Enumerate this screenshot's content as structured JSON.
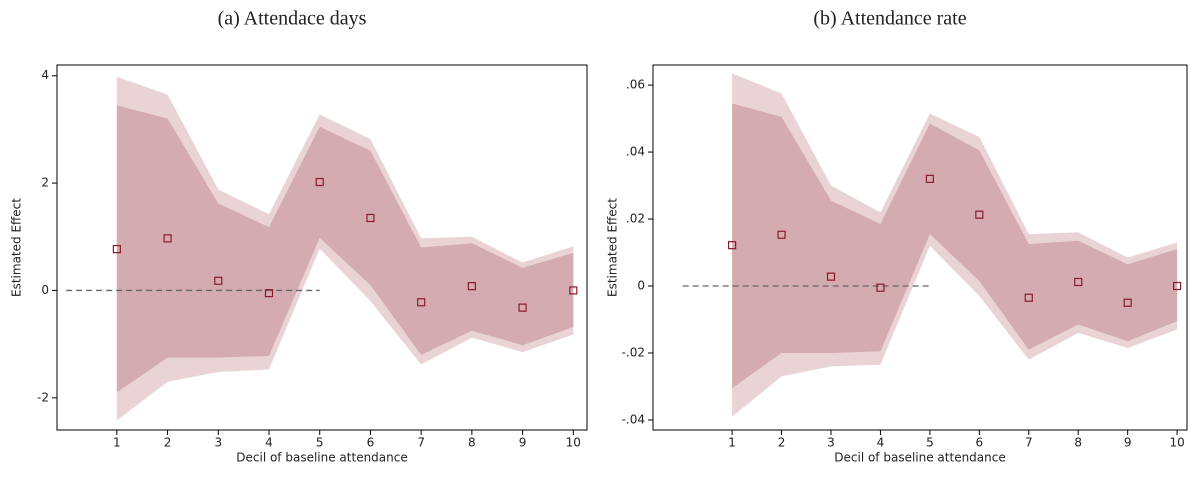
{
  "chart_data": [
    {
      "type": "scatter_band",
      "title": "(a) Attendace days",
      "xlabel": "Decil of baseline attendance",
      "ylabel": "Estimated Effect",
      "x": [
        1,
        2,
        3,
        4,
        5,
        6,
        7,
        8,
        9,
        10
      ],
      "values": [
        0.77,
        0.97,
        0.18,
        -0.05,
        2.02,
        1.35,
        -0.22,
        0.08,
        -0.32,
        0.0
      ],
      "marker_color": "#8b1a2b",
      "bands": [
        {
          "color": "#ead3d5",
          "upper": [
            3.98,
            3.65,
            1.88,
            1.42,
            3.28,
            2.82,
            0.97,
            1.0,
            0.52,
            0.82
          ],
          "lower": [
            -2.42,
            -1.7,
            -1.52,
            -1.47,
            0.78,
            -0.2,
            -1.38,
            -0.88,
            -1.15,
            -0.82
          ]
        },
        {
          "color": "#d3abb0",
          "upper": [
            3.45,
            3.2,
            1.62,
            1.18,
            3.05,
            2.6,
            0.8,
            0.88,
            0.42,
            0.7
          ],
          "lower": [
            -1.9,
            -1.25,
            -1.25,
            -1.22,
            0.98,
            0.1,
            -1.2,
            -0.75,
            -1.02,
            -0.68
          ]
        }
      ],
      "hline": {
        "y": 0,
        "x": [
          0,
          5
        ]
      },
      "xlim": [
        -0.18,
        10.27
      ],
      "xticks": [
        1,
        2,
        3,
        4,
        5,
        6,
        7,
        8,
        9,
        10
      ],
      "ylim": [
        -2.6,
        4.2
      ],
      "yticks": [
        -2,
        0,
        2,
        4
      ]
    },
    {
      "type": "scatter_band",
      "title": "(b) Attendance rate",
      "xlabel": "Decil of baseline attendance",
      "ylabel": "Estimated Effect",
      "x": [
        1,
        2,
        3,
        4,
        5,
        6,
        7,
        8,
        9,
        10
      ],
      "values": [
        0.0122,
        0.0153,
        0.0028,
        -0.0005,
        0.032,
        0.0213,
        -0.0035,
        0.0012,
        -0.005,
        0.0
      ],
      "marker_color": "#8b1a2b",
      "bands": [
        {
          "color": "#ead3d5",
          "upper": [
            0.0635,
            0.0575,
            0.03,
            0.022,
            0.0515,
            0.0445,
            0.0155,
            0.016,
            0.0085,
            0.013
          ],
          "lower": [
            -0.039,
            -0.027,
            -0.024,
            -0.0235,
            0.012,
            -0.003,
            -0.022,
            -0.014,
            -0.0185,
            -0.013
          ]
        },
        {
          "color": "#d3abb0",
          "upper": [
            0.0545,
            0.0505,
            0.0255,
            0.0185,
            0.0485,
            0.0405,
            0.0125,
            0.0135,
            0.0065,
            0.011
          ],
          "lower": [
            -0.0305,
            -0.02,
            -0.02,
            -0.0195,
            0.0155,
            0.0015,
            -0.019,
            -0.0115,
            -0.0165,
            -0.0105
          ]
        }
      ],
      "hline": {
        "y": 0,
        "x": [
          0,
          5
        ]
      },
      "xlim": [
        -0.6,
        10.2
      ],
      "xticks": [
        1,
        2,
        3,
        4,
        5,
        6,
        7,
        8,
        9,
        10
      ],
      "ylim": [
        -0.043,
        0.066
      ],
      "yticks": [
        {
          "value": -0.04,
          "label": "-.04"
        },
        {
          "value": -0.02,
          "label": "-.02"
        },
        0,
        {
          "value": 0.02,
          "label": ".02"
        },
        {
          "value": 0.04,
          "label": ".04"
        },
        {
          "value": 0.06,
          "label": ".06"
        }
      ]
    }
  ]
}
